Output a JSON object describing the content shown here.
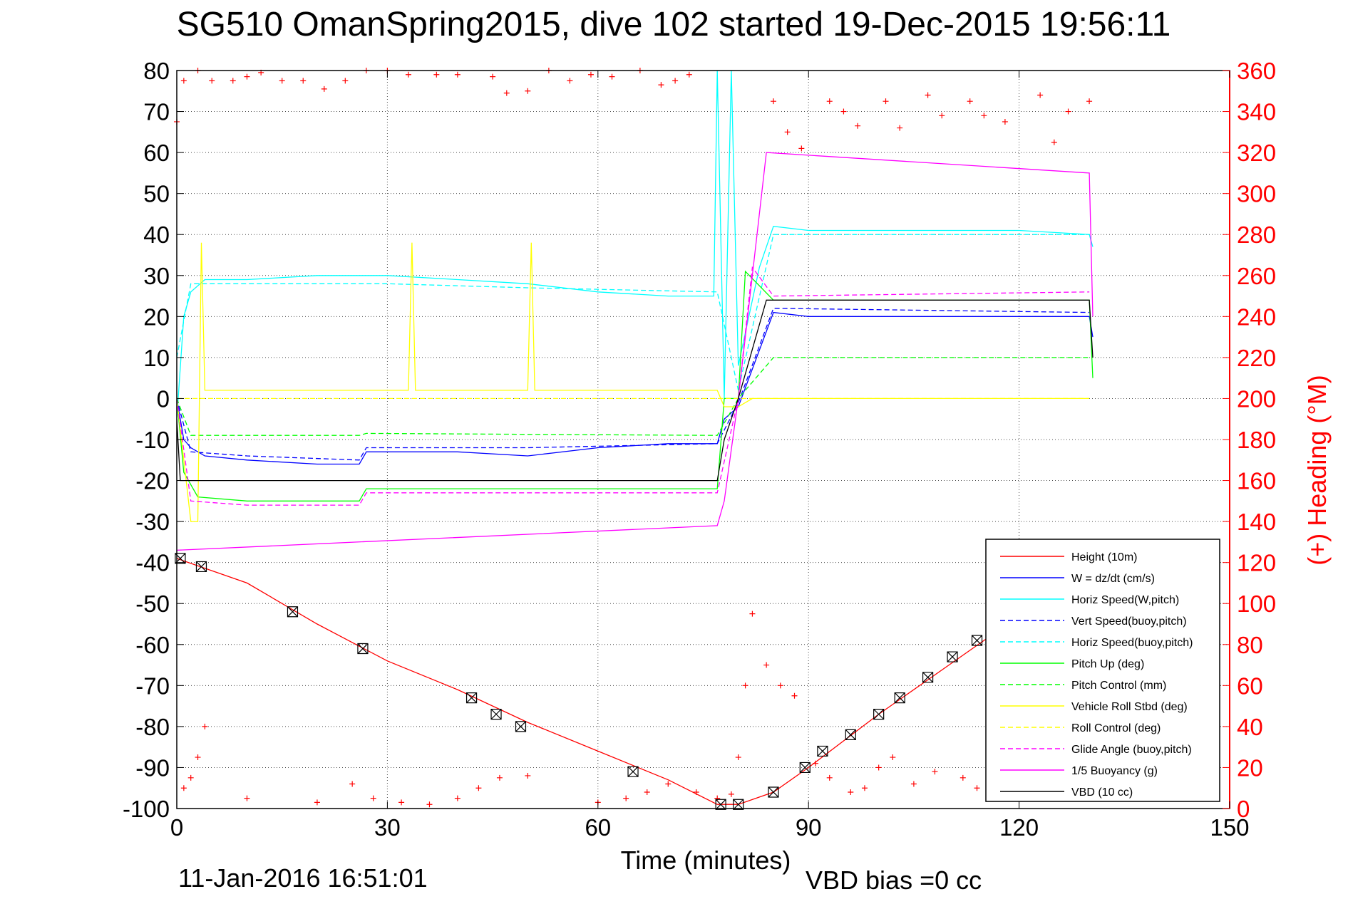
{
  "figure": {
    "title": "SG510 OmanSpring2015, dive 102 started 19-Dec-2015 19:56:11",
    "xlabel": "Time (minutes)",
    "ylabel_right": "(+) Heading (°M)",
    "footer_date": "11-Jan-2016 16:51:01",
    "footer_vbd": "VBD bias =0 cc"
  },
  "chart_data": {
    "type": "line",
    "xlim": [
      0,
      150
    ],
    "ylim": [
      -100,
      80
    ],
    "y2lim": [
      0,
      360
    ],
    "x_ticks": [
      0,
      30,
      60,
      90,
      120,
      150
    ],
    "y_ticks": [
      80,
      70,
      60,
      50,
      40,
      30,
      20,
      10,
      0,
      -10,
      -20,
      -30,
      -40,
      -50,
      -60,
      -70,
      -80,
      -90,
      -100
    ],
    "y2_ticks": [
      360,
      340,
      320,
      300,
      280,
      260,
      240,
      220,
      200,
      180,
      160,
      140,
      120,
      100,
      80,
      60,
      40,
      20,
      0
    ],
    "grid": true,
    "legend_position": "bottom-right",
    "legend": [
      {
        "label": "Height (10m)",
        "color": "#ff0000",
        "dash": "solid"
      },
      {
        "label": "W = dz/dt (cm/s)",
        "color": "#0000ff",
        "dash": "solid"
      },
      {
        "label": "Horiz Speed(W,pitch)",
        "color": "#00ffff",
        "dash": "solid"
      },
      {
        "label": "Vert Speed(buoy,pitch)",
        "color": "#0000ff",
        "dash": "dashed"
      },
      {
        "label": "Horiz Speed(buoy,pitch)",
        "color": "#00ffff",
        "dash": "dashed"
      },
      {
        "label": "Pitch Up (deg)",
        "color": "#00ff00",
        "dash": "solid"
      },
      {
        "label": "Pitch Control (mm)",
        "color": "#00ff00",
        "dash": "dashed"
      },
      {
        "label": "Vehicle Roll Stbd (deg)",
        "color": "#ffff00",
        "dash": "solid"
      },
      {
        "label": "Roll Control (deg)",
        "color": "#ffff00",
        "dash": "dashed"
      },
      {
        "label": "Glide Angle (buoy,pitch)",
        "color": "#ff00ff",
        "dash": "dashed"
      },
      {
        "label": "1/5 Buoyancy (g)",
        "color": "#ff00ff",
        "dash": "solid"
      },
      {
        "label": "VBD (10 cc)",
        "color": "#000000",
        "dash": "solid"
      }
    ],
    "series": [
      {
        "name": "Height (10m)",
        "color": "#ff0000",
        "dash": "solid",
        "x": [
          0,
          10,
          20,
          30,
          40,
          50,
          60,
          70,
          77,
          80,
          85,
          90,
          100,
          110,
          120,
          125
        ],
        "y": [
          -39,
          -45,
          -55,
          -64,
          -71,
          -79,
          -86,
          -93,
          -99,
          -99,
          -96,
          -90,
          -77,
          -65,
          -53,
          -47
        ]
      },
      {
        "name": "W = dz/dt (cm/s)",
        "color": "#0000ff",
        "dash": "solid",
        "x": [
          0,
          1,
          2,
          4,
          10,
          20,
          26,
          27,
          40,
          50,
          60,
          70,
          77,
          78,
          80,
          85,
          90,
          100,
          110,
          120,
          130,
          130.5
        ],
        "y": [
          0,
          -10,
          -12,
          -14,
          -15,
          -16,
          -16,
          -13,
          -13,
          -14,
          -12,
          -11,
          -11,
          -5,
          -2,
          21,
          20,
          20,
          20,
          20,
          20,
          15
        ]
      },
      {
        "name": "Horiz Speed(W,pitch)",
        "color": "#00ffff",
        "dash": "solid",
        "x": [
          0,
          1,
          2,
          4,
          10,
          20,
          30,
          40,
          50,
          60,
          70,
          76.5,
          77,
          78,
          79,
          80,
          83,
          85,
          90,
          100,
          110,
          120,
          130,
          130.5
        ],
        "y": [
          -5,
          20,
          26,
          29,
          29,
          30,
          30,
          29,
          28,
          26,
          25,
          25,
          80,
          0,
          80,
          8,
          32,
          42,
          41,
          41,
          41,
          41,
          40,
          37
        ]
      },
      {
        "name": "Vert Speed(buoy,pitch)",
        "color": "#0000ff",
        "dash": "dashed",
        "x": [
          0,
          2,
          10,
          26,
          27,
          50,
          77,
          80,
          85,
          130
        ],
        "y": [
          0,
          -13,
          -14,
          -15,
          -12,
          -12,
          -11,
          -1,
          22,
          21
        ]
      },
      {
        "name": "Horiz Speed(buoy,pitch)",
        "color": "#00ffff",
        "dash": "dashed",
        "x": [
          0,
          2,
          10,
          30,
          50,
          77,
          80,
          85,
          130
        ],
        "y": [
          10,
          28,
          28,
          28,
          27,
          26,
          2,
          40,
          40
        ]
      },
      {
        "name": "Pitch Up (deg)",
        "color": "#00ff00",
        "dash": "solid",
        "x": [
          0,
          1,
          3,
          10,
          26,
          27,
          40,
          50,
          60,
          70,
          77,
          78,
          80,
          81,
          85,
          90,
          100,
          110,
          120,
          130,
          130.5
        ],
        "y": [
          0,
          -18,
          -24,
          -25,
          -25,
          -22,
          -22,
          -22,
          -22,
          -22,
          -22,
          0,
          0,
          31,
          24,
          24,
          24,
          24,
          24,
          24,
          5
        ]
      },
      {
        "name": "Pitch Control (mm)",
        "color": "#00ff00",
        "dash": "dashed",
        "x": [
          0,
          2,
          26,
          27,
          77,
          80,
          85,
          130
        ],
        "y": [
          0,
          -9,
          -9,
          -8.5,
          -9,
          0,
          10,
          10
        ]
      },
      {
        "name": "Vehicle Roll Stbd (deg)",
        "color": "#ffff00",
        "dash": "solid",
        "x": [
          0,
          2,
          3,
          3.5,
          4,
          6,
          33,
          33.5,
          34,
          50,
          50.5,
          51,
          77,
          78,
          80,
          82,
          85,
          90,
          100,
          110,
          120,
          130
        ],
        "y": [
          0,
          -30,
          -30,
          38,
          2,
          2,
          2,
          38,
          2,
          2,
          38,
          2,
          2,
          -2,
          -2,
          0,
          0,
          0,
          0,
          0,
          0,
          0
        ]
      },
      {
        "name": "Roll Control (deg)",
        "color": "#ffff00",
        "dash": "dashed",
        "x": [
          0,
          2,
          4,
          40,
          77,
          80,
          85,
          130
        ],
        "y": [
          0,
          0,
          0,
          0,
          0,
          0,
          0,
          0
        ]
      },
      {
        "name": "Glide Angle (buoy,pitch)",
        "color": "#ff00ff",
        "dash": "dashed",
        "x": [
          0,
          2,
          10,
          26,
          27,
          50,
          77,
          80,
          82,
          85,
          130
        ],
        "y": [
          0,
          -25,
          -26,
          -26,
          -23,
          -23,
          -23,
          0,
          32,
          25,
          26
        ]
      },
      {
        "name": "1/5 Buoyancy (g)",
        "color": "#ff00ff",
        "dash": "solid",
        "x": [
          0,
          77,
          78,
          80,
          84,
          130,
          130.5
        ],
        "y": [
          -37,
          -31,
          -25,
          0,
          60,
          55,
          20
        ]
      },
      {
        "name": "VBD (10 cc)",
        "color": "#000000",
        "dash": "solid",
        "x": [
          0,
          0.5,
          77,
          78,
          80,
          84,
          130,
          130.5
        ],
        "y": [
          -5,
          -20,
          -20,
          -10,
          0,
          24,
          24,
          10
        ]
      }
    ],
    "heading_scatter": {
      "color": "#ff0000",
      "marker": "+",
      "axis": "right",
      "x": [
        0,
        1,
        3,
        5,
        8,
        10,
        12,
        15,
        18,
        21,
        24,
        27,
        30,
        33,
        37,
        40,
        45,
        47,
        50,
        53,
        56,
        59,
        62,
        66,
        69,
        71,
        73,
        85,
        87,
        89,
        93,
        95,
        97,
        101,
        103,
        107,
        109,
        113,
        115,
        118,
        123,
        125,
        127,
        130,
        1,
        2,
        3,
        4,
        10,
        20,
        25,
        28,
        32,
        36,
        40,
        43,
        46,
        50,
        60,
        64,
        67,
        70,
        74,
        77,
        79,
        80,
        81,
        82,
        84,
        86,
        88,
        91,
        93,
        96,
        98,
        100,
        102,
        105,
        108,
        112,
        114,
        116
      ],
      "y": [
        335,
        355,
        360,
        355,
        355,
        357,
        359,
        355,
        355,
        351,
        355,
        360,
        360,
        358,
        358,
        358,
        357,
        349,
        350,
        360,
        355,
        358,
        357,
        360,
        353,
        355,
        358,
        345,
        330,
        322,
        345,
        340,
        333,
        345,
        332,
        348,
        338,
        345,
        338,
        335,
        348,
        325,
        340,
        345,
        10,
        15,
        25,
        40,
        5,
        3,
        12,
        5,
        3,
        2,
        5,
        10,
        15,
        16,
        3,
        5,
        8,
        12,
        8,
        5,
        7,
        25,
        60,
        95,
        70,
        60,
        55,
        22,
        15,
        8,
        10,
        20,
        25,
        12,
        18,
        15,
        10,
        8
      ]
    },
    "vbd_markers": {
      "marker": "square-x",
      "color": "#000000",
      "x": [
        0.5,
        3.5,
        16.5,
        26.5,
        42,
        45.5,
        49,
        65,
        77.5,
        80,
        85,
        89.5,
        92,
        96,
        100,
        103,
        107,
        110.5,
        114
      ],
      "y": [
        -39,
        -41,
        -52,
        -61,
        -73,
        -77,
        -80,
        -91,
        -99,
        -99,
        -96,
        -90,
        -86,
        -82,
        -77,
        -73,
        -68,
        -63,
        -59
      ]
    }
  }
}
